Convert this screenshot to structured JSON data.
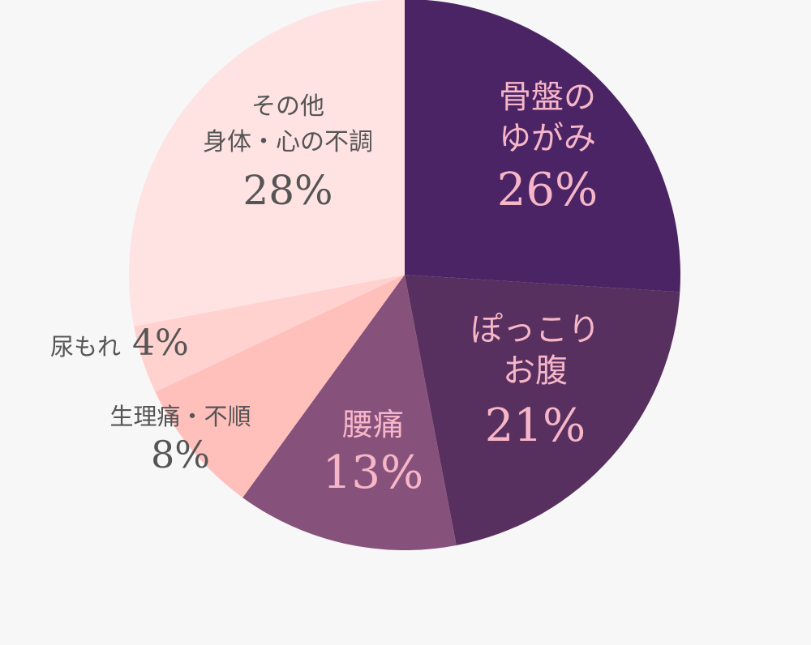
{
  "chart_data": {
    "type": "pie",
    "slices": [
      {
        "key": "pelvis",
        "name_lines": [
          "骨盤の",
          "ゆがみ"
        ],
        "value": 26,
        "label": "26%",
        "color": "#4a2464"
      },
      {
        "key": "belly",
        "name_lines": [
          "ぽっこり",
          "お腹"
        ],
        "value": 21,
        "label": "21%",
        "color": "#57305f"
      },
      {
        "key": "back",
        "name_lines": [
          "腰痛"
        ],
        "value": 13,
        "label": "13%",
        "color": "#86527c"
      },
      {
        "key": "period",
        "name_lines": [
          "生理痛・不順"
        ],
        "value": 8,
        "label": "8%",
        "color": "#ffc0bb"
      },
      {
        "key": "urine",
        "name_lines": [
          "尿もれ"
        ],
        "value": 4,
        "label": "4%",
        "color": "#ffd2cf"
      },
      {
        "key": "other",
        "name_lines": [
          "その他",
          "身体・心の不調"
        ],
        "value": 28,
        "label": "28%",
        "color": "#ffe3e3"
      }
    ]
  }
}
